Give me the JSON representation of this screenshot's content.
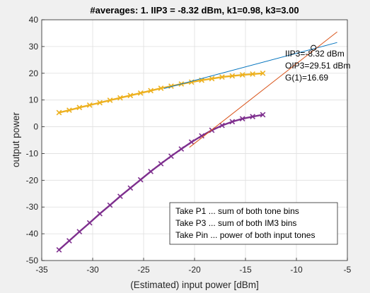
{
  "chart_data": {
    "type": "line",
    "title": "#averages: 1. IIP3 = -8.32 dBm, k1=0.98, k3=3.00",
    "xlabel": "(Estimated) input power [dBm]",
    "ylabel": "output power",
    "xlim": [
      -35,
      -5
    ],
    "ylim": [
      -50,
      40
    ],
    "xticks": [
      -35,
      -30,
      -25,
      -20,
      -15,
      -10,
      -5
    ],
    "yticks": [
      -50,
      -40,
      -30,
      -20,
      -10,
      0,
      10,
      20,
      30,
      40
    ],
    "grid": true,
    "series": [
      {
        "marker": "x",
        "color": "#edb120",
        "x": [
          -33.3,
          -32.3,
          -31.3,
          -30.3,
          -29.3,
          -28.3,
          -27.3,
          -26.3,
          -25.3,
          -24.3,
          -23.3,
          -22.3,
          -21.3,
          -20.3,
          -19.3,
          -18.3,
          -17.3,
          -16.3,
          -15.3,
          -14.3,
          -13.3
        ],
        "y": [
          5.3,
          6.2,
          7.2,
          8.1,
          9.0,
          9.9,
          10.8,
          11.7,
          12.6,
          13.5,
          14.4,
          15.2,
          16.0,
          16.7,
          17.4,
          18.0,
          18.6,
          19.0,
          19.4,
          19.7,
          20.0
        ]
      },
      {
        "marker": "x",
        "color": "#7e2f8e",
        "x": [
          -33.3,
          -32.3,
          -31.3,
          -30.3,
          -29.3,
          -28.3,
          -27.3,
          -26.3,
          -25.3,
          -24.3,
          -23.3,
          -22.3,
          -21.3,
          -20.3,
          -19.3,
          -18.3,
          -17.3,
          -16.3,
          -15.3,
          -14.3,
          -13.3
        ],
        "y": [
          -46.0,
          -42.6,
          -39.2,
          -35.9,
          -32.5,
          -29.3,
          -26.0,
          -22.9,
          -19.8,
          -16.7,
          -13.8,
          -11.0,
          -8.3,
          -5.7,
          -3.4,
          -1.3,
          0.5,
          1.9,
          3.0,
          3.8,
          4.5
        ]
      },
      {
        "marker": "none",
        "color": "#0072bd",
        "x": [
          -23.0,
          -6.0
        ],
        "y": [
          14.3,
          31.5
        ]
      },
      {
        "marker": "none",
        "color": "#d95319",
        "x": [
          -20.5,
          -6.0
        ],
        "y": [
          -7.7,
          35.5
        ]
      }
    ],
    "intercept": {
      "x": -8.32,
      "y": 29.51
    },
    "intercept_labels": [
      "IIP3=-8.32 dBm",
      "OIP3=29.51 dBm",
      "G(1)=16.69"
    ],
    "legend_text": [
      "Take P1 ... sum of both tone bins",
      "Take P3 ... sum of both IM3 bins",
      "Take Pin ... power of both input tones"
    ]
  }
}
